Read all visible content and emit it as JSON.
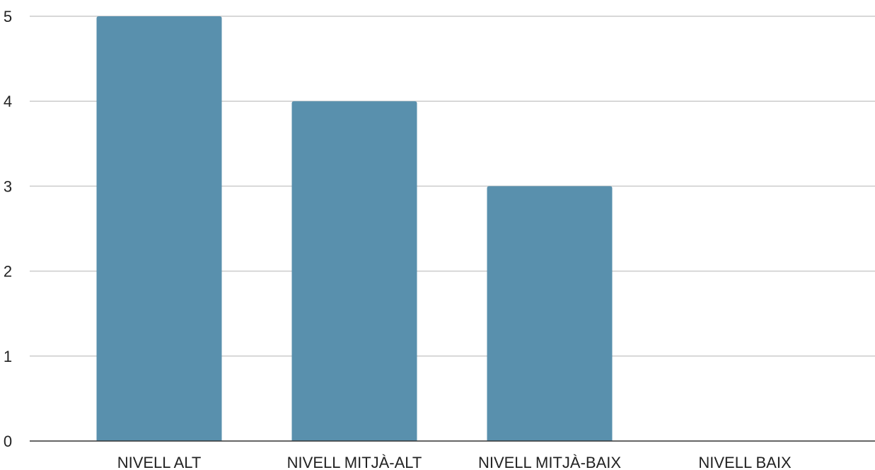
{
  "chart_data": {
    "type": "bar",
    "categories": [
      "NIVELL ALT",
      "NIVELL MITJÀ-ALT",
      "NIVELL MITJÀ-BAIX",
      "NIVELL BAIX"
    ],
    "values": [
      5,
      4,
      3,
      0
    ],
    "title": "",
    "xlabel": "",
    "ylabel": "",
    "ylim": [
      0,
      5
    ],
    "yticks": [
      0,
      1,
      2,
      3,
      4,
      5
    ],
    "grid": true,
    "legend": "none",
    "bar_color": "#5990ad",
    "grid_color": "#cccccc",
    "axis_color": "#333333"
  }
}
